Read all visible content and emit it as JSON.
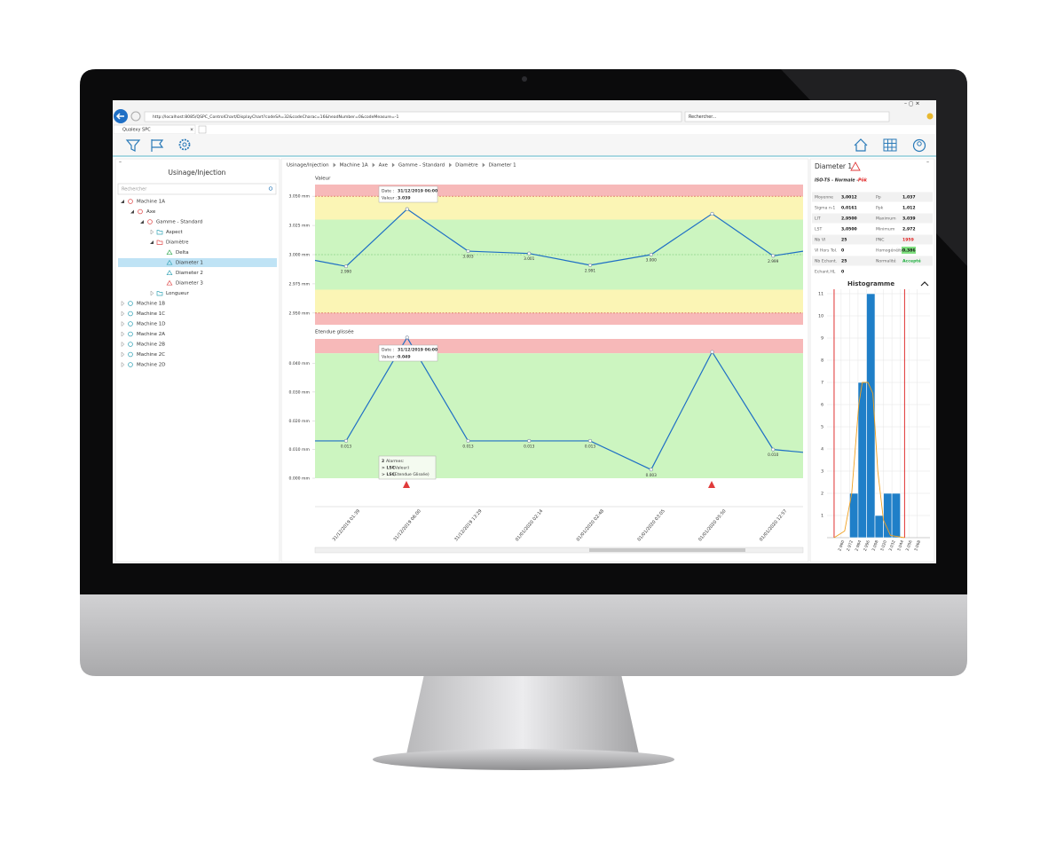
{
  "browser": {
    "url": "http://localhost:8085/QSPC_ControlChart/DisplayChart?codeSA=32&codeCharac=16&headNumber=0&codeMeasure=-1",
    "search": "Rechercher...",
    "tab": "Qualexy SPC"
  },
  "sidebar": {
    "title": "Usinage/Injection",
    "search": "Rechercher",
    "nodes": [
      {
        "label": "Machine 1A",
        "level": 0,
        "shape": "hex",
        "color": "#e05050",
        "open": true
      },
      {
        "label": "Axe",
        "level": 1,
        "shape": "hex",
        "color": "#e05050",
        "open": true
      },
      {
        "label": "Gamme - Standard",
        "level": 2,
        "shape": "hex",
        "color": "#e05050",
        "open": true
      },
      {
        "label": "Aspect",
        "level": 3,
        "shape": "folder",
        "color": "#3aa6b9",
        "open": false
      },
      {
        "label": "Diamètre",
        "level": 3,
        "shape": "folder",
        "color": "#e05050",
        "open": true
      },
      {
        "label": "Delta",
        "level": 4,
        "shape": "triangle",
        "color": "#3cae5a"
      },
      {
        "label": "Diameter 1",
        "level": 4,
        "shape": "triangle",
        "color": "#3aa6b9",
        "selected": true
      },
      {
        "label": "Diameter 2",
        "level": 4,
        "shape": "triangle",
        "color": "#3aa6b9"
      },
      {
        "label": "Diameter 3",
        "level": 4,
        "shape": "triangle",
        "color": "#e05050"
      },
      {
        "label": "Longueur",
        "level": 3,
        "shape": "folder",
        "color": "#3aa6b9",
        "open": false
      },
      {
        "label": "Machine 1B",
        "level": 0,
        "shape": "hex",
        "color": "#3aa6b9",
        "open": false
      },
      {
        "label": "Machine 1C",
        "level": 0,
        "shape": "hex",
        "color": "#3aa6b9",
        "open": false
      },
      {
        "label": "Machine 1D",
        "level": 0,
        "shape": "hex",
        "color": "#3aa6b9",
        "open": false
      },
      {
        "label": "Machine 2A",
        "level": 0,
        "shape": "hex",
        "color": "#3aa6b9",
        "open": false
      },
      {
        "label": "Machine 2B",
        "level": 0,
        "shape": "hex",
        "color": "#3aa6b9",
        "open": false
      },
      {
        "label": "Machine 2C",
        "level": 0,
        "shape": "hex",
        "color": "#3aa6b9",
        "open": false
      },
      {
        "label": "Machine 2D",
        "level": 0,
        "shape": "hex",
        "color": "#3aa6b9",
        "open": false
      }
    ]
  },
  "breadcrumb": [
    "Usinage/Injection",
    "Machine 1A",
    "Axe",
    "Gamme - Standard",
    "Diamètre",
    "Diameter 1"
  ],
  "tooltip_value": {
    "date_label": "Date :",
    "date": "31/12/2019 06:00",
    "value_label": "Valeur :",
    "value": "3.039"
  },
  "tooltip_range": {
    "date_label": "Date :",
    "date": "31/12/2019 06:00",
    "value_label": "Valeur :",
    "value": "0.049"
  },
  "tooltip_alarm": {
    "count": "2",
    "title": "Alarmes:",
    "lines": [
      {
        "code": "> LSC",
        "text": "(Valeur)"
      },
      {
        "code": "> LSC",
        "text": "(Etendue Glissée)"
      }
    ]
  },
  "stats": {
    "title": "Diameter 1",
    "subtitle": "ISO-TS - Normale -",
    "subtitle_flag": "Pôk",
    "rows": [
      [
        {
          "label": "Moyenne",
          "value": "3,0012"
        },
        {
          "label": "Pp",
          "value": "1,037"
        }
      ],
      [
        {
          "label": "Sigma n-1",
          "value": "0,0161"
        },
        {
          "label": "Ppk",
          "value": "1,012"
        }
      ],
      [
        {
          "label": "LIT",
          "value": "2,9500"
        },
        {
          "label": "Maximum",
          "value": "3,039"
        }
      ],
      [
        {
          "label": "LST",
          "value": "3,0500"
        },
        {
          "label": "Minimum",
          "value": "2,972"
        }
      ],
      [
        {
          "label": "Nb Vl",
          "value": "25"
        },
        {
          "label": "PNC",
          "value": "1959",
          "color": "#e02020"
        }
      ],
      [
        {
          "label": "Vl Hors Tol.",
          "value": "0"
        },
        {
          "label": "Homogénéité",
          "value": "0,386",
          "bg": "#7fe07f"
        }
      ],
      [
        {
          "label": "Nb Echant.",
          "value": "25"
        },
        {
          "label": "Normalité",
          "value": "Accepté",
          "color": "#20b040"
        }
      ],
      [
        {
          "label": "Echant.HL",
          "value": "0"
        }
      ]
    ]
  },
  "chart_data": [
    {
      "type": "line",
      "title": "Valeur",
      "series": [
        {
          "color": "#1f6fc5",
          "values": [
            3.0,
            2.99,
            3.039,
            3.003,
            3.001,
            2.991,
            3.0,
            3.035,
            2.999,
            3.007
          ],
          "value_labels": [
            null,
            "2.990",
            null,
            "3.003",
            "3.001",
            "2.991",
            "3.000",
            null,
            "2.999",
            null
          ]
        }
      ],
      "ylim": [
        2.94,
        3.06
      ],
      "yticks": [
        {
          "value": 2.95,
          "label": "2.950 mm"
        },
        {
          "value": 2.975,
          "label": "2.975 mm"
        },
        {
          "value": 3.0,
          "label": "3.000 mm"
        },
        {
          "value": 3.025,
          "label": "3.025 mm"
        },
        {
          "value": 3.05,
          "label": "3.050 mm"
        }
      ],
      "zones": [
        {
          "from": 3.05,
          "to": 3.06,
          "color": "#f7b9b9"
        },
        {
          "from": 3.03,
          "to": 3.05,
          "color": "#fbf5b5"
        },
        {
          "from": 2.97,
          "to": 3.03,
          "color": "#ccf5c0"
        },
        {
          "from": 2.95,
          "to": 2.97,
          "color": "#fbf5b5"
        },
        {
          "from": 2.94,
          "to": 2.95,
          "color": "#f7b9b9"
        }
      ],
      "lines": [
        {
          "value": 3.05,
          "color": "#d04848"
        },
        {
          "value": 3.0,
          "color": "#6cbf6c"
        },
        {
          "value": 2.95,
          "color": "#d04848"
        }
      ]
    },
    {
      "type": "line",
      "title": "Etendue glissée",
      "categories": [
        null,
        "31/12/2019 01:39",
        "31/12/2019 06:00",
        "31/12/2019 13:29",
        "01/01/2020 02:14",
        "01/01/2020 02:48",
        "01/01/2020 03:05",
        "01/01/2020 05:50",
        "01/01/2020 12:57",
        null
      ],
      "series": [
        {
          "color": "#1f6fc5",
          "values": [
            0.013,
            0.013,
            0.049,
            0.013,
            0.013,
            0.013,
            0.003,
            0.044,
            0.01,
            0.008
          ],
          "value_labels": [
            null,
            "0.013",
            null,
            "0.013",
            "0.013",
            "0.013",
            "0.003",
            null,
            "0.010",
            null
          ]
        }
      ],
      "ylim": [
        0,
        0.0485
      ],
      "yticks": [
        {
          "value": 0,
          "label": "0.000 mm"
        },
        {
          "value": 0.01,
          "label": "0.010 mm"
        },
        {
          "value": 0.02,
          "label": "0.020 mm"
        },
        {
          "value": 0.03,
          "label": "0.030 mm"
        },
        {
          "value": 0.04,
          "label": "0.040 mm"
        }
      ],
      "zones": [
        {
          "from": 0.0435,
          "to": 0.0485,
          "color": "#f7b9b9"
        },
        {
          "from": 0,
          "to": 0.0435,
          "color": "#ccf5c0"
        }
      ],
      "lines": []
    },
    {
      "type": "histogram",
      "title": "Histogramme",
      "color": "#1f7fc8",
      "bins": [
        2.972,
        2.984,
        2.996,
        3.008,
        3.02,
        3.032,
        3.044
      ],
      "counts": [
        2,
        7,
        11,
        1,
        2,
        2
      ],
      "xlim": [
        2.94,
        3.086
      ],
      "xticks": [
        {
          "value": 2.96,
          "label": "2.960"
        },
        {
          "value": 2.972,
          "label": "2.972"
        },
        {
          "value": 2.984,
          "label": "2.984"
        },
        {
          "value": 2.996,
          "label": "2.996"
        },
        {
          "value": 3.008,
          "label": "3.008"
        },
        {
          "value": 3.02,
          "label": "3.020"
        },
        {
          "value": 3.032,
          "label": "3.032"
        },
        {
          "value": 3.044,
          "label": "3.044"
        },
        {
          "value": 3.056,
          "label": "3.056"
        },
        {
          "value": 3.068,
          "label": "3.068"
        }
      ],
      "ylim": [
        0,
        11.2
      ],
      "yticks": [
        1,
        2,
        3,
        4,
        5,
        6,
        7,
        8,
        9,
        10,
        11
      ],
      "grid": true,
      "limits": [
        {
          "value": 2.95,
          "color": "#e03030"
        },
        {
          "value": 3.05,
          "color": "#e03030"
        }
      ],
      "curve": {
        "color": "#f0a020",
        "x": [
          2.95,
          2.965,
          2.975,
          2.985,
          2.99,
          2.998,
          3.005,
          3.012,
          3.02,
          3.03,
          3.05
        ],
        "y": [
          0,
          0.3,
          2,
          6,
          7,
          7,
          6.5,
          3,
          0.8,
          0.1,
          0
        ]
      }
    }
  ]
}
